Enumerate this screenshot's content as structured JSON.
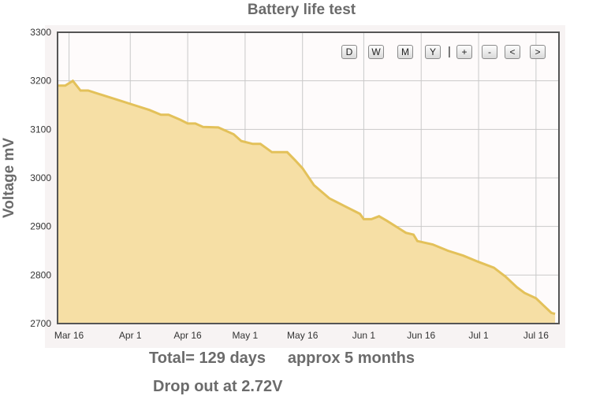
{
  "chart_data": {
    "type": "area",
    "title": "Battery life test",
    "ylabel": "Voltage mV",
    "xlabel": "",
    "ylim": [
      2700,
      3300
    ],
    "yticks": [
      2700,
      2800,
      2900,
      3000,
      3100,
      3200,
      3300
    ],
    "xticks": [
      "Mar 16",
      "Apr 1",
      "Apr 16",
      "May 1",
      "May 16",
      "Jun 1",
      "Jun 16",
      "Jul 1",
      "Jul 16"
    ],
    "xlim": [
      "2013-03-13",
      "2013-07-22"
    ],
    "grid": true,
    "series": [
      {
        "x": [
          "2013-03-13",
          "2013-03-15",
          "2013-03-17",
          "2013-03-19",
          "2013-03-21",
          "2013-03-25",
          "2013-03-29",
          "2013-04-02",
          "2013-04-06",
          "2013-04-09",
          "2013-04-11",
          "2013-04-14",
          "2013-04-16",
          "2013-04-18",
          "2013-04-20",
          "2013-04-24",
          "2013-04-28",
          "2013-04-30",
          "2013-05-03",
          "2013-05-05",
          "2013-05-08",
          "2013-05-10",
          "2013-05-12",
          "2013-05-14",
          "2013-05-16",
          "2013-05-19",
          "2013-05-23",
          "2013-05-27",
          "2013-05-31",
          "2013-06-01",
          "2013-06-03",
          "2013-06-05",
          "2013-06-07",
          "2013-06-10",
          "2013-06-12",
          "2013-06-14",
          "2013-06-15",
          "2013-06-19",
          "2013-06-23",
          "2013-06-27",
          "2013-07-01",
          "2013-07-05",
          "2013-07-08",
          "2013-07-11",
          "2013-07-13",
          "2013-07-16",
          "2013-07-18",
          "2013-07-20",
          "2013-07-21"
        ],
        "values": [
          3190,
          3190,
          3200,
          3180,
          3180,
          3170,
          3160,
          3150,
          3140,
          3130,
          3130,
          3120,
          3112,
          3112,
          3105,
          3104,
          3090,
          3076,
          3070,
          3070,
          3053,
          3053,
          3053,
          3037,
          3020,
          2985,
          2958,
          2942,
          2926,
          2915,
          2915,
          2921,
          2912,
          2897,
          2887,
          2883,
          2870,
          2863,
          2850,
          2840,
          2827,
          2815,
          2797,
          2775,
          2763,
          2752,
          2737,
          2722,
          2720
        ]
      }
    ],
    "annotations": [
      "Total= 129 days     approx 5 months",
      "Drop out at 2.72V"
    ],
    "colors": {
      "fill": "#f6dfa5",
      "line": "#e3c15a",
      "plot_bg": "#fefbfb",
      "grid": "#c9c9c9",
      "frame": "#555555"
    }
  },
  "toolbar": {
    "buttons": [
      "D",
      "W",
      "M",
      "Y",
      "+",
      "-",
      "<",
      ">"
    ],
    "separator": "|"
  }
}
